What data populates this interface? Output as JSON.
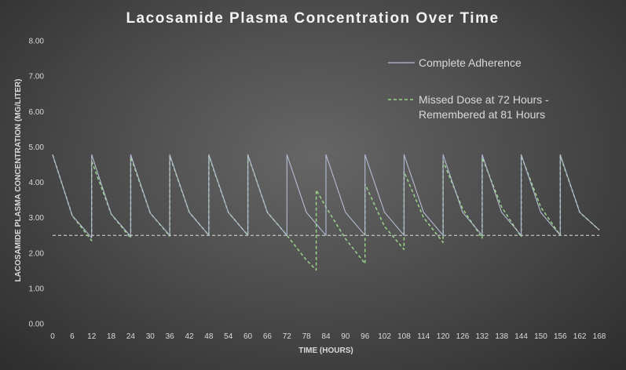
{
  "chart_data": {
    "type": "line",
    "title": "Lacosamide Plasma Concentration Over Time",
    "xlabel": "TIME (HOURS)",
    "ylabel": "LACOSAMIDE PLASMA CONCENTRATION (MG/LITER)",
    "xlim": [
      0,
      168
    ],
    "ylim": [
      0,
      8
    ],
    "x_ticks": [
      0,
      6,
      12,
      18,
      24,
      30,
      36,
      42,
      48,
      54,
      60,
      66,
      72,
      78,
      84,
      90,
      96,
      102,
      108,
      114,
      120,
      126,
      132,
      138,
      144,
      150,
      156,
      162,
      168
    ],
    "y_ticks": [
      "0.00",
      "1.00",
      "2.00",
      "3.00",
      "4.00",
      "5.00",
      "6.00",
      "7.00",
      "8.00"
    ],
    "reference_line": {
      "y": 2.5,
      "style": "dashed"
    },
    "grid": false,
    "legend_position": "top-right",
    "series": [
      {
        "name": "Complete Adherence",
        "color": "#b4bcd4",
        "style": "solid",
        "x": [
          0,
          6,
          12,
          12,
          18,
          24,
          24,
          30,
          36,
          36,
          42,
          48,
          48,
          54,
          60,
          60,
          66,
          72,
          72,
          78,
          84,
          84,
          90,
          96,
          96,
          102,
          108,
          108,
          114,
          120,
          120,
          126,
          132,
          132,
          138,
          144,
          144,
          150,
          156,
          156,
          162,
          168
        ],
        "y": [
          4.78,
          3.06,
          2.43,
          4.78,
          3.1,
          2.47,
          4.78,
          3.13,
          2.5,
          4.78,
          3.15,
          2.5,
          4.78,
          3.15,
          2.5,
          4.78,
          3.15,
          2.5,
          4.78,
          3.15,
          2.5,
          4.78,
          3.15,
          2.5,
          4.78,
          3.15,
          2.5,
          4.78,
          3.15,
          2.5,
          4.78,
          3.15,
          2.5,
          4.78,
          3.15,
          2.5,
          4.78,
          3.15,
          2.5,
          4.78,
          3.15,
          2.65
        ]
      },
      {
        "name": "Missed Dose at 72 Hours - Remembered at 81 Hours",
        "color": "#9ad48a",
        "style": "dashed",
        "x": [
          0,
          6,
          12,
          12,
          18,
          24,
          24,
          30,
          36,
          36,
          42,
          48,
          48,
          54,
          60,
          60,
          66,
          72,
          78,
          81,
          81,
          84,
          90,
          96,
          96,
          102,
          108,
          108,
          114,
          120,
          120,
          126,
          132,
          132,
          138,
          144,
          144,
          150,
          156,
          156,
          162,
          168
        ],
        "y": [
          4.78,
          3.06,
          2.35,
          4.6,
          3.1,
          2.42,
          4.72,
          3.13,
          2.48,
          4.74,
          3.15,
          2.5,
          4.75,
          3.15,
          2.5,
          4.76,
          3.15,
          2.5,
          1.8,
          1.52,
          3.78,
          3.3,
          2.4,
          1.7,
          3.95,
          2.75,
          2.1,
          4.3,
          3.0,
          2.3,
          4.6,
          3.25,
          2.42,
          4.7,
          3.3,
          2.45,
          4.75,
          3.3,
          2.5,
          4.75,
          3.15,
          2.65
        ]
      }
    ]
  }
}
